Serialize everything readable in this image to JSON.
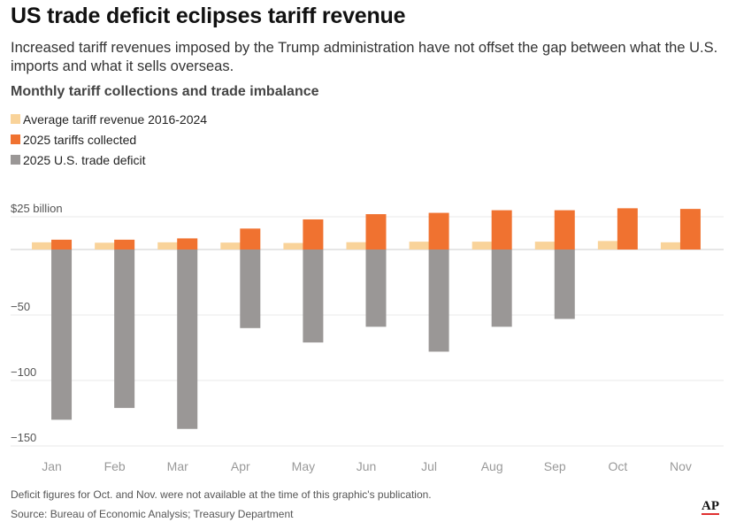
{
  "title": "US trade deficit eclipses tariff revenue",
  "subtitle": "Increased tariff revenues imposed by the Trump administration have not offset the gap between what the U.S. imports and what it sells overseas.",
  "note": "Deficit figures for Oct. and Nov. were not available at the time of this graphic's publication.",
  "source": "Source: Bureau of Economic Analysis; Treasury Department",
  "logo_text": "AP",
  "colors": {
    "avg": "#f9d39a",
    "tariffs": "#f07230",
    "deficit": "#9a9796",
    "grid": "#e8e8e8",
    "zero": "#cccccc"
  },
  "chart_data": {
    "type": "bar",
    "title": "Monthly tariff collections and trade imbalance",
    "categories": [
      "Jan",
      "Feb",
      "Mar",
      "Apr",
      "May",
      "Jun",
      "Jul",
      "Aug",
      "Sep",
      "Oct",
      "Nov"
    ],
    "series": [
      {
        "name": "Average tariff revenue 2016-2024",
        "values": [
          5.5,
          5.2,
          5.5,
          5.3,
          5.0,
          5.6,
          6.0,
          6.0,
          6.0,
          6.5,
          5.5
        ]
      },
      {
        "name": "2025 tariffs collected",
        "values": [
          7.5,
          7.5,
          8.5,
          16,
          23,
          27,
          28,
          30,
          30,
          31.5,
          31
        ]
      },
      {
        "name": "2025 U.S. trade deficit",
        "values": [
          -130,
          -121,
          -137,
          -60,
          -71,
          -59,
          -78,
          -59,
          -53,
          null,
          null
        ]
      }
    ],
    "ylim": [
      -150,
      25
    ],
    "yticks": [
      {
        "value": 25,
        "label": "$25 billion"
      },
      {
        "value": -50,
        "label": "−50"
      },
      {
        "value": -100,
        "label": "−100"
      },
      {
        "value": -150,
        "label": "−150"
      }
    ],
    "grid": true,
    "legend_position": "top-left"
  }
}
